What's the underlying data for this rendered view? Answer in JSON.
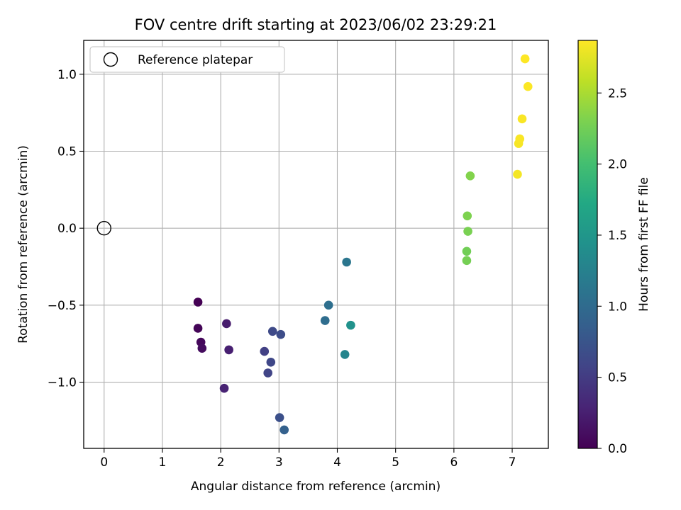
{
  "chart_data": {
    "type": "scatter",
    "title": "FOV centre drift starting at 2023/06/02 23:29:21",
    "xlabel": "Angular distance from reference (arcmin)",
    "ylabel": "Rotation from reference (arcmin)",
    "xlim": [
      -0.35,
      7.62
    ],
    "ylim": [
      -1.43,
      1.22
    ],
    "xticks": [
      0,
      1,
      2,
      3,
      4,
      5,
      6,
      7
    ],
    "xtick_labels": [
      "0",
      "1",
      "2",
      "3",
      "4",
      "5",
      "6",
      "7"
    ],
    "yticks": [
      -1.0,
      -0.5,
      0.0,
      0.5,
      1.0
    ],
    "ytick_labels": [
      "−1.0",
      "−0.5",
      "0.0",
      "0.5",
      "1.0"
    ],
    "grid": true,
    "legend": {
      "position": "upper-left",
      "entries": [
        "Reference platepar"
      ]
    },
    "reference_point": {
      "name": "Reference platepar",
      "x": 0.0,
      "y": 0.0,
      "marker": "open-circle"
    },
    "colorbar": {
      "label": "Hours from first FF file",
      "colormap": "viridis",
      "range": [
        0.0,
        2.87
      ],
      "ticks": [
        0.0,
        0.5,
        1.0,
        1.5,
        2.0,
        2.5
      ],
      "tick_labels": [
        "0.0",
        "0.5",
        "1.0",
        "1.5",
        "2.0",
        "2.5"
      ]
    },
    "points": [
      {
        "x": 1.61,
        "y": -0.48,
        "c": 0.0
      },
      {
        "x": 1.61,
        "y": -0.65,
        "c": 0.03
      },
      {
        "x": 1.66,
        "y": -0.74,
        "c": 0.06
      },
      {
        "x": 1.68,
        "y": -0.78,
        "c": 0.09
      },
      {
        "x": 2.1,
        "y": -0.62,
        "c": 0.22
      },
      {
        "x": 2.14,
        "y": -0.79,
        "c": 0.25
      },
      {
        "x": 2.06,
        "y": -1.04,
        "c": 0.28
      },
      {
        "x": 2.75,
        "y": -0.8,
        "c": 0.55
      },
      {
        "x": 2.81,
        "y": -0.94,
        "c": 0.58
      },
      {
        "x": 2.86,
        "y": -0.87,
        "c": 0.61
      },
      {
        "x": 2.89,
        "y": -0.67,
        "c": 0.64
      },
      {
        "x": 3.03,
        "y": -0.69,
        "c": 0.67
      },
      {
        "x": 3.01,
        "y": -1.23,
        "c": 0.7
      },
      {
        "x": 3.09,
        "y": -1.31,
        "c": 0.88
      },
      {
        "x": 3.79,
        "y": -0.6,
        "c": 1.02
      },
      {
        "x": 3.85,
        "y": -0.5,
        "c": 1.05
      },
      {
        "x": 4.16,
        "y": -0.22,
        "c": 1.12
      },
      {
        "x": 4.13,
        "y": -0.82,
        "c": 1.3
      },
      {
        "x": 4.23,
        "y": -0.63,
        "c": 1.45
      },
      {
        "x": 6.22,
        "y": -0.15,
        "c": 2.25
      },
      {
        "x": 6.22,
        "y": -0.21,
        "c": 2.27
      },
      {
        "x": 6.24,
        "y": -0.02,
        "c": 2.29
      },
      {
        "x": 6.23,
        "y": 0.08,
        "c": 2.31
      },
      {
        "x": 6.28,
        "y": 0.34,
        "c": 2.33
      },
      {
        "x": 7.09,
        "y": 0.35,
        "c": 2.83
      },
      {
        "x": 7.11,
        "y": 0.55,
        "c": 2.84
      },
      {
        "x": 7.13,
        "y": 0.58,
        "c": 2.85
      },
      {
        "x": 7.17,
        "y": 0.71,
        "c": 2.85
      },
      {
        "x": 7.27,
        "y": 0.92,
        "c": 2.86
      },
      {
        "x": 7.22,
        "y": 1.1,
        "c": 2.87
      }
    ]
  }
}
